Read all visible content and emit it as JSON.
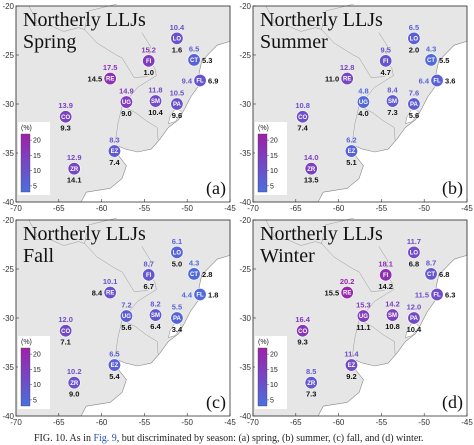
{
  "caption": {
    "prefix": "FIG. 10. As in ",
    "ref": "Fig. 9",
    "suffix": ", but discriminated by season: (a) spring, (b) summer, (c) fall, and (d) winter."
  },
  "axes": {
    "lon_ticks": [
      -70,
      -65,
      -60,
      -55,
      -50,
      -45
    ],
    "lon_tick_labels": [
      "-70",
      "-65",
      "-60",
      "-55",
      "-50",
      "-45"
    ],
    "lat_ticks": [
      -20,
      -25,
      -30,
      -35,
      -40
    ],
    "lat_tick_labels": [
      "-20",
      "-25",
      "-30",
      "-35",
      "-40"
    ],
    "lon_range": [
      -70,
      -45
    ],
    "lat_range": [
      -40,
      -20
    ]
  },
  "colorbar": {
    "label": "(%)",
    "ticks": [
      5,
      10,
      15,
      20
    ],
    "tick_labels": [
      "5",
      "10",
      "15",
      "20"
    ],
    "range": [
      3,
      22
    ],
    "color_low": "#4a6fe0",
    "color_high": "#a020a8"
  },
  "land_color": "#e6e6e6",
  "water_color": "#ffffff",
  "stations": [
    {
      "code": "LO",
      "lon": -51.2,
      "lat": -23.3
    },
    {
      "code": "FI",
      "lon": -54.5,
      "lat": -25.6
    },
    {
      "code": "CT",
      "lon": -49.2,
      "lat": -25.5
    },
    {
      "code": "RE",
      "lon": -59.0,
      "lat": -27.4
    },
    {
      "code": "FL",
      "lon": -48.5,
      "lat": -27.6
    },
    {
      "code": "CO",
      "lon": -64.2,
      "lat": -31.3
    },
    {
      "code": "UG",
      "lon": -57.1,
      "lat": -29.8
    },
    {
      "code": "SM",
      "lon": -53.7,
      "lat": -29.7
    },
    {
      "code": "PA",
      "lon": -51.2,
      "lat": -30.0
    },
    {
      "code": "EZ",
      "lon": -58.5,
      "lat": -34.8
    },
    {
      "code": "ZR",
      "lon": -63.2,
      "lat": -36.6
    }
  ],
  "panels": [
    {
      "title": "Northerly LLJs",
      "season": "Spring",
      "letter": "(a)",
      "values": {
        "LO": {
          "top": "10.4",
          "bottom": "1.6",
          "v": 10.4
        },
        "FI": {
          "top": "15.2",
          "bottom": "1.0",
          "v": 15.2
        },
        "CT": {
          "top": "6.5",
          "bottom": "5.3",
          "v": 6.5
        },
        "RE": {
          "top": "17.5",
          "bottom": "14.5",
          "v": 17.5
        },
        "FL": {
          "top": "9.4",
          "bottom": "6.9",
          "v": 9.4
        },
        "CO": {
          "top": "13.9",
          "bottom": "9.3",
          "v": 13.9
        },
        "UG": {
          "top": "14.9",
          "bottom": "9.0",
          "v": 14.9
        },
        "SM": {
          "top": "11.8",
          "bottom": "10.4",
          "v": 11.8
        },
        "PA": {
          "top": "10.5",
          "bottom": "9.6",
          "v": 10.5
        },
        "EZ": {
          "top": "8.3",
          "bottom": "7.4",
          "v": 8.3
        },
        "ZR": {
          "top": "12.9",
          "bottom": "14.1",
          "v": 12.9
        }
      }
    },
    {
      "title": "Northerly LLJs",
      "season": "Summer",
      "letter": "(b)",
      "values": {
        "LO": {
          "top": "6.5",
          "bottom": "2.0",
          "v": 6.5
        },
        "FI": {
          "top": "9.5",
          "bottom": "4.7",
          "v": 9.5
        },
        "CT": {
          "top": "4.3",
          "bottom": "5.5",
          "v": 4.3
        },
        "RE": {
          "top": "12.8",
          "bottom": "11.0",
          "v": 12.8
        },
        "FL": {
          "top": "6.4",
          "bottom": "3.6",
          "v": 6.4
        },
        "CO": {
          "top": "10.8",
          "bottom": "7.4",
          "v": 10.8
        },
        "UG": {
          "top": "4.8",
          "bottom": "4.0",
          "v": 4.8
        },
        "SM": {
          "top": "8.4",
          "bottom": "7.3",
          "v": 8.4
        },
        "PA": {
          "top": "7.6",
          "bottom": "5.6",
          "v": 7.6
        },
        "EZ": {
          "top": "6.2",
          "bottom": "5.1",
          "v": 6.2
        },
        "ZR": {
          "top": "14.0",
          "bottom": "13.5",
          "v": 14.0
        }
      }
    },
    {
      "title": "Northerly LLJs",
      "season": "Fall",
      "letter": "(c)",
      "values": {
        "LO": {
          "top": "6.1",
          "bottom": "5.0",
          "v": 6.1
        },
        "FI": {
          "top": "8.7",
          "bottom": "6.7",
          "v": 8.7
        },
        "CT": {
          "top": "4.3",
          "bottom": "2.8",
          "v": 4.3
        },
        "RE": {
          "top": "10.1",
          "bottom": "8.4",
          "v": 10.1
        },
        "FL": {
          "top": "4.4",
          "bottom": "1.8",
          "v": 4.4
        },
        "CO": {
          "top": "12.0",
          "bottom": "7.1",
          "v": 12.0
        },
        "UG": {
          "top": "7.2",
          "bottom": "5.6",
          "v": 7.2
        },
        "SM": {
          "top": "8.2",
          "bottom": "6.4",
          "v": 8.2
        },
        "PA": {
          "top": "5.5",
          "bottom": "3.4",
          "v": 5.5
        },
        "EZ": {
          "top": "6.5",
          "bottom": "5.4",
          "v": 6.5
        },
        "ZR": {
          "top": "10.2",
          "bottom": "9.0",
          "v": 10.2
        }
      }
    },
    {
      "title": "Northerly LLJs",
      "season": "Winter",
      "letter": "(d)",
      "values": {
        "LO": {
          "top": "11.7",
          "bottom": "6.8",
          "v": 11.7
        },
        "FI": {
          "top": "18.1",
          "bottom": "14.2",
          "v": 18.1
        },
        "CT": {
          "top": "8.7",
          "bottom": "6.8",
          "v": 8.7
        },
        "RE": {
          "top": "20.2",
          "bottom": "15.5",
          "v": 20.2
        },
        "FL": {
          "top": "11.5",
          "bottom": "6.3",
          "v": 11.5
        },
        "CO": {
          "top": "16.4",
          "bottom": "9.3",
          "v": 16.4
        },
        "UG": {
          "top": "15.3",
          "bottom": "11.1",
          "v": 15.3
        },
        "SM": {
          "top": "14.2",
          "bottom": "10.8",
          "v": 14.2
        },
        "PA": {
          "top": "12.0",
          "bottom": "10.4",
          "v": 12.0
        },
        "EZ": {
          "top": "11.4",
          "bottom": "9.2",
          "v": 11.4
        },
        "ZR": {
          "top": "8.5",
          "bottom": "7.3",
          "v": 8.5
        }
      }
    }
  ]
}
